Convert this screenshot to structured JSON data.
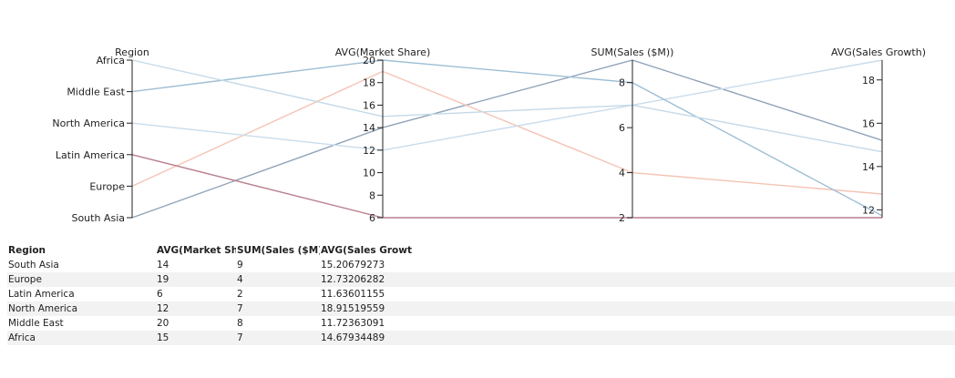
{
  "chart_data": {
    "type": "parallel-coordinates",
    "dimensions": [
      {
        "name": "Region",
        "kind": "category",
        "categories": [
          "Africa",
          "Middle East",
          "North America",
          "Latin America",
          "Europe",
          "South Asia"
        ]
      },
      {
        "name": "AVG(Market Share)",
        "kind": "number",
        "range": [
          6,
          20
        ],
        "ticks": [
          6,
          8,
          10,
          12,
          14,
          16,
          18,
          20
        ]
      },
      {
        "name": "SUM(Sales ($M))",
        "kind": "number",
        "range": [
          2,
          9
        ],
        "ticks": [
          2,
          4,
          6,
          8
        ]
      },
      {
        "name": "AVG(Sales Growth)",
        "kind": "number",
        "range": [
          11.636,
          18.9152
        ],
        "ticks": [
          12,
          14,
          16,
          18
        ]
      }
    ],
    "rows": [
      {
        "region": "South Asia",
        "market_share": 14,
        "sales": 9,
        "growth": 15.20679273,
        "color": "#8fa3b8"
      },
      {
        "region": "Europe",
        "market_share": 19,
        "sales": 4,
        "growth": 12.73206282,
        "color": "#f4c4b4"
      },
      {
        "region": "Latin America",
        "market_share": 6,
        "sales": 2,
        "growth": 11.63601155,
        "color": "#b97f8d"
      },
      {
        "region": "North America",
        "market_share": 12,
        "sales": 7,
        "growth": 18.91519559,
        "color": "#c9dcec"
      },
      {
        "region": "Middle East",
        "market_share": 20,
        "sales": 8,
        "growth": 11.72363091,
        "color": "#9ebfd6"
      },
      {
        "region": "Africa",
        "market_share": 15,
        "sales": 7,
        "growth": 14.67934489,
        "color": "#c4d9e8"
      }
    ]
  },
  "table": {
    "headers": [
      "Region",
      "AVG(Market Shar",
      "SUM(Sales ($M))",
      "AVG(Sales Growt"
    ],
    "rows": [
      [
        "South Asia",
        "14",
        "9",
        "15.20679273"
      ],
      [
        "Europe",
        "19",
        "4",
        "12.73206282"
      ],
      [
        "Latin America",
        "6",
        "2",
        "11.63601155"
      ],
      [
        "North America",
        "12",
        "7",
        "18.91519559"
      ],
      [
        "Middle East",
        "20",
        "8",
        "11.72363091"
      ],
      [
        "Africa",
        "15",
        "7",
        "14.67934489"
      ]
    ]
  }
}
